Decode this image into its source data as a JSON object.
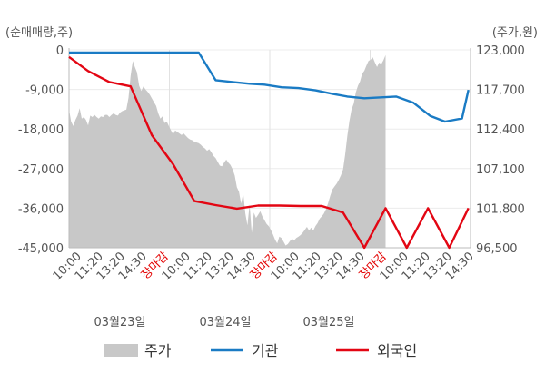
{
  "chart_data": {
    "type": "line",
    "left_axis_unit": "(순매매량,주)",
    "right_axis_unit": "(주가,원)",
    "left_ticks": [
      "0",
      "-9,000",
      "-18,000",
      "-27,000",
      "-36,000",
      "-45,000"
    ],
    "left_tick_values": [
      0,
      -9000,
      -18000,
      -27000,
      -36000,
      -45000
    ],
    "right_ticks": [
      "123,000",
      "117,700",
      "112,400",
      "107,100",
      "101,800",
      "96,500"
    ],
    "right_tick_values": [
      123000,
      117700,
      112400,
      107100,
      101800,
      96500
    ],
    "ylim_left": [
      -45000,
      0
    ],
    "ylim_right": [
      96500,
      123000
    ],
    "x_ticks": [
      "10:00",
      "11:20",
      "13:20",
      "14:30",
      "장마감",
      "10:00",
      "11:20",
      "13:20",
      "14:30",
      "장마감",
      "10:00",
      "11:20",
      "13:20",
      "14:30",
      "장마감",
      "10:00",
      "11:20",
      "13:20",
      "14:30"
    ],
    "dates": [
      "03월23일",
      "03월24일",
      "03월25일"
    ],
    "colors": {
      "price": "#c8c8c8",
      "institution": "#1a7bc4",
      "foreign": "#e30613",
      "close_label": "#e30000"
    },
    "legend": [
      "주가",
      "기관",
      "외국인"
    ],
    "price_series": {
      "name": "주가",
      "x": [
        0,
        1,
        2,
        3,
        4,
        5,
        6,
        7,
        8,
        9,
        10,
        11,
        12,
        13,
        14,
        15,
        16,
        17,
        18,
        19,
        20,
        21,
        22,
        23,
        24,
        25,
        26,
        27,
        28,
        29,
        30,
        31,
        32,
        33,
        34,
        35,
        36,
        37,
        38,
        39,
        40,
        41,
        42,
        43,
        44,
        45,
        46,
        47,
        48,
        49,
        50,
        51,
        52,
        53,
        54,
        55,
        56,
        57,
        58,
        59,
        60,
        61,
        62,
        63,
        64,
        65,
        66,
        67,
        68,
        69,
        70,
        71,
        72,
        73,
        74,
        75,
        76,
        77,
        78,
        79,
        80,
        81,
        82,
        83,
        84,
        85,
        86,
        87,
        88,
        89,
        90,
        91,
        92,
        93,
        94,
        95,
        96,
        97,
        98,
        99,
        100,
        101,
        102,
        103,
        104,
        105,
        106,
        107,
        108,
        109,
        110,
        111,
        112,
        113,
        114,
        115,
        116,
        117,
        118,
        119,
        120,
        121,
        122,
        123,
        124,
        125,
        126,
        127,
        128,
        129,
        130,
        131,
        132,
        133,
        134,
        135,
        136,
        137,
        138,
        139,
        140,
        141,
        142,
        143,
        144,
        145,
        146,
        147,
        148,
        149,
        150,
        151,
        152,
        153,
        154,
        155,
        156,
        157,
        158,
        159,
        160,
        161,
        162,
        163,
        164,
        165,
        166,
        167,
        168,
        169,
        170,
        171,
        172,
        173,
        174,
        175,
        176,
        177,
        178,
        179,
        180,
        181,
        182,
        183,
        184,
        185,
        186,
        187,
        188,
        189
      ],
      "values": [
        115000,
        113400,
        112800,
        113600,
        114200,
        115200,
        113800,
        114000,
        113600,
        112900,
        114200,
        114000,
        114300,
        114000,
        113800,
        114100,
        114000,
        114300,
        114300,
        114000,
        114300,
        114500,
        114300,
        114200,
        114600,
        114800,
        114900,
        115000,
        116600,
        119500,
        121500,
        120700,
        120000,
        118200,
        117500,
        118100,
        117700,
        117400,
        117000,
        116500,
        116000,
        115500,
        114500,
        113800,
        114100,
        113200,
        113400,
        112800,
        112200,
        111700,
        112200,
        112000,
        111800,
        111600,
        111800,
        111500,
        111200,
        111000,
        110900,
        110700,
        110600,
        110500,
        110300,
        110000,
        109800,
        109500,
        109700,
        109300,
        108800,
        108500,
        108000,
        107500,
        107400,
        107900,
        108300,
        107900,
        107600,
        107000,
        106200,
        104600,
        104000,
        102400,
        103800,
        101100,
        99500,
        102300,
        98500,
        101200,
        100500,
        100900,
        101400,
        100700,
        100200,
        99700,
        99400,
        98900,
        98300,
        97600,
        97100,
        98000,
        97800,
        97300,
        96800,
        97000,
        97400,
        97700,
        97500,
        97800,
        98000,
        98200,
        98500,
        98900,
        99300,
        98800,
        99200,
        98800,
        99400,
        99800,
        100400,
        100700,
        101100,
        101700,
        102500,
        103500,
        104300,
        104700,
        105100,
        105600,
        106200,
        107000,
        109000,
        111500,
        113500,
        115000,
        115800,
        117300,
        118200,
        118800,
        119800,
        120200,
        120900,
        121500,
        121700,
        122000,
        121300,
        120700,
        121300,
        121100,
        121600,
        122300,
        null,
        null,
        null,
        null,
        null,
        null,
        null,
        null,
        null,
        null,
        null,
        null,
        null,
        null,
        null,
        null,
        null,
        null,
        null,
        null,
        null,
        null,
        null,
        null,
        null,
        null,
        null,
        null,
        null,
        null,
        null,
        null,
        null,
        null,
        null,
        null,
        null,
        null,
        null,
        null
      ]
    },
    "series": [
      {
        "name": "기관",
        "x": [
          0,
          7,
          15,
          23,
          31,
          38,
          46,
          54,
          61,
          69,
          77,
          85,
          92,
          100,
          108,
          116,
          124,
          131,
          139,
          147,
          154,
          162,
          170,
          177,
          185,
          188
        ],
        "values": [
          -600,
          -600,
          -600,
          -600,
          -600,
          -600,
          -600,
          -600,
          -600,
          -6900,
          -7300,
          -7700,
          -7900,
          -8500,
          -8700,
          -9200,
          -10000,
          -10600,
          -11000,
          -10800,
          -10600,
          -12000,
          -15000,
          -16300,
          -15600,
          -9100
        ]
      },
      {
        "name": "외국인",
        "x": [
          0,
          9,
          19,
          29,
          39,
          49,
          59,
          69,
          79,
          89,
          99,
          109,
          119,
          129,
          139,
          149,
          159,
          169,
          179,
          188
        ],
        "values": [
          -1600,
          -4800,
          -7300,
          -8300,
          -19400,
          -26000,
          -34400,
          -35300,
          -36100,
          -35400,
          -35400,
          -35500,
          -35500,
          -37000,
          -45000,
          -36000,
          -45000,
          -36000,
          -45000,
          -36000
        ]
      }
    ]
  }
}
